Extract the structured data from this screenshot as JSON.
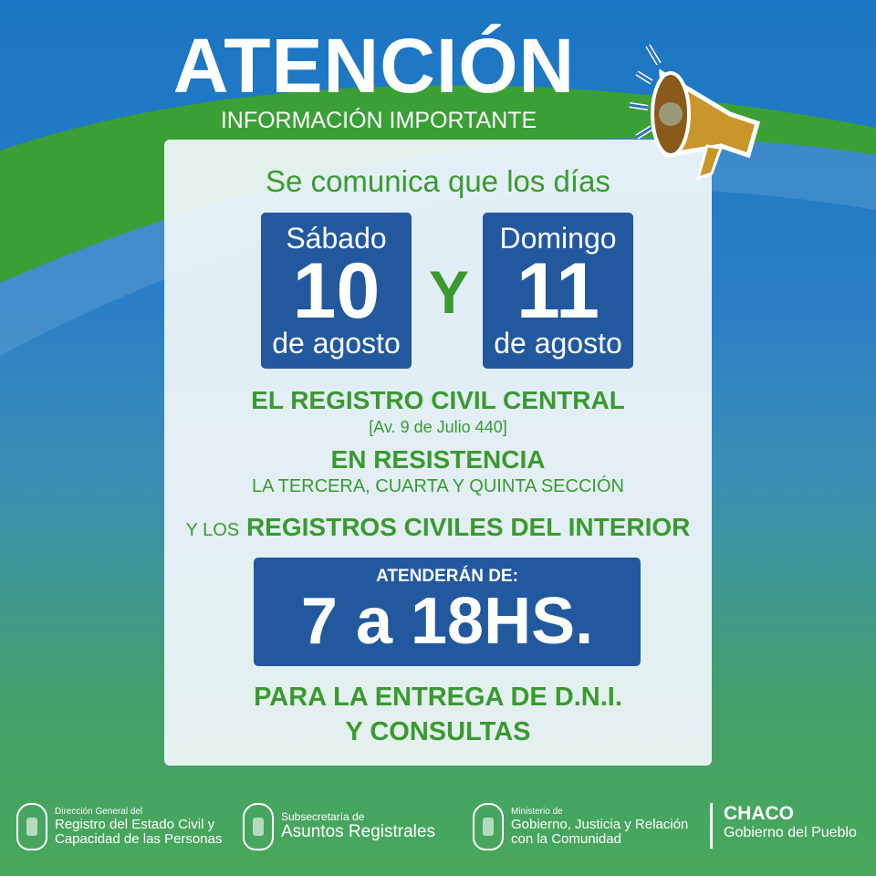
{
  "header": {
    "title": "ATENCIÓN",
    "subtitle": "INFORMACIÓN IMPORTANTE"
  },
  "intro": "Se comunica que los días",
  "days": [
    {
      "day": "Sábado",
      "number": "10",
      "month": "de agosto"
    },
    {
      "day": "Domingo",
      "number": "11",
      "month": "de agosto"
    }
  ],
  "conjunction": "Y",
  "registry": {
    "name": "EL REGISTRO CIVIL CENTRAL",
    "address": "[Av. 9 de Julio 440]",
    "city": "EN RESISTENCIA",
    "sections": "LA TERCERA, CUARTA Y QUINTA SECCIÓN",
    "interior_prefix": "Y LOS",
    "interior": "REGISTROS CIVILES DEL INTERIOR"
  },
  "hours": {
    "label": "ATENDERÁN DE:",
    "value": "7 a 18HS."
  },
  "purpose": {
    "line1": "PARA LA ENTREGA DE D.N.I.",
    "line2": "Y CONSULTAS"
  },
  "footer": {
    "logos": [
      {
        "small": "Dirección General del",
        "line1": "Registro del Estado Civil y",
        "line2": "Capacidad de las Personas"
      },
      {
        "small": "Subsecretaría de",
        "line1": "Asuntos Registrales",
        "line2": ""
      },
      {
        "small": "Ministerio de",
        "line1": "Gobierno, Justicia y Relación",
        "line2": "con la Comunidad"
      }
    ],
    "brand": {
      "title": "CHACO",
      "subtitle": "Gobierno del Pueblo"
    }
  },
  "colors": {
    "blue": "#1a75c2",
    "green": "#3a9a2f",
    "box": "#22589e"
  },
  "icons": {
    "megaphone": "megaphone-icon",
    "seal": "provincial-seal-icon"
  }
}
